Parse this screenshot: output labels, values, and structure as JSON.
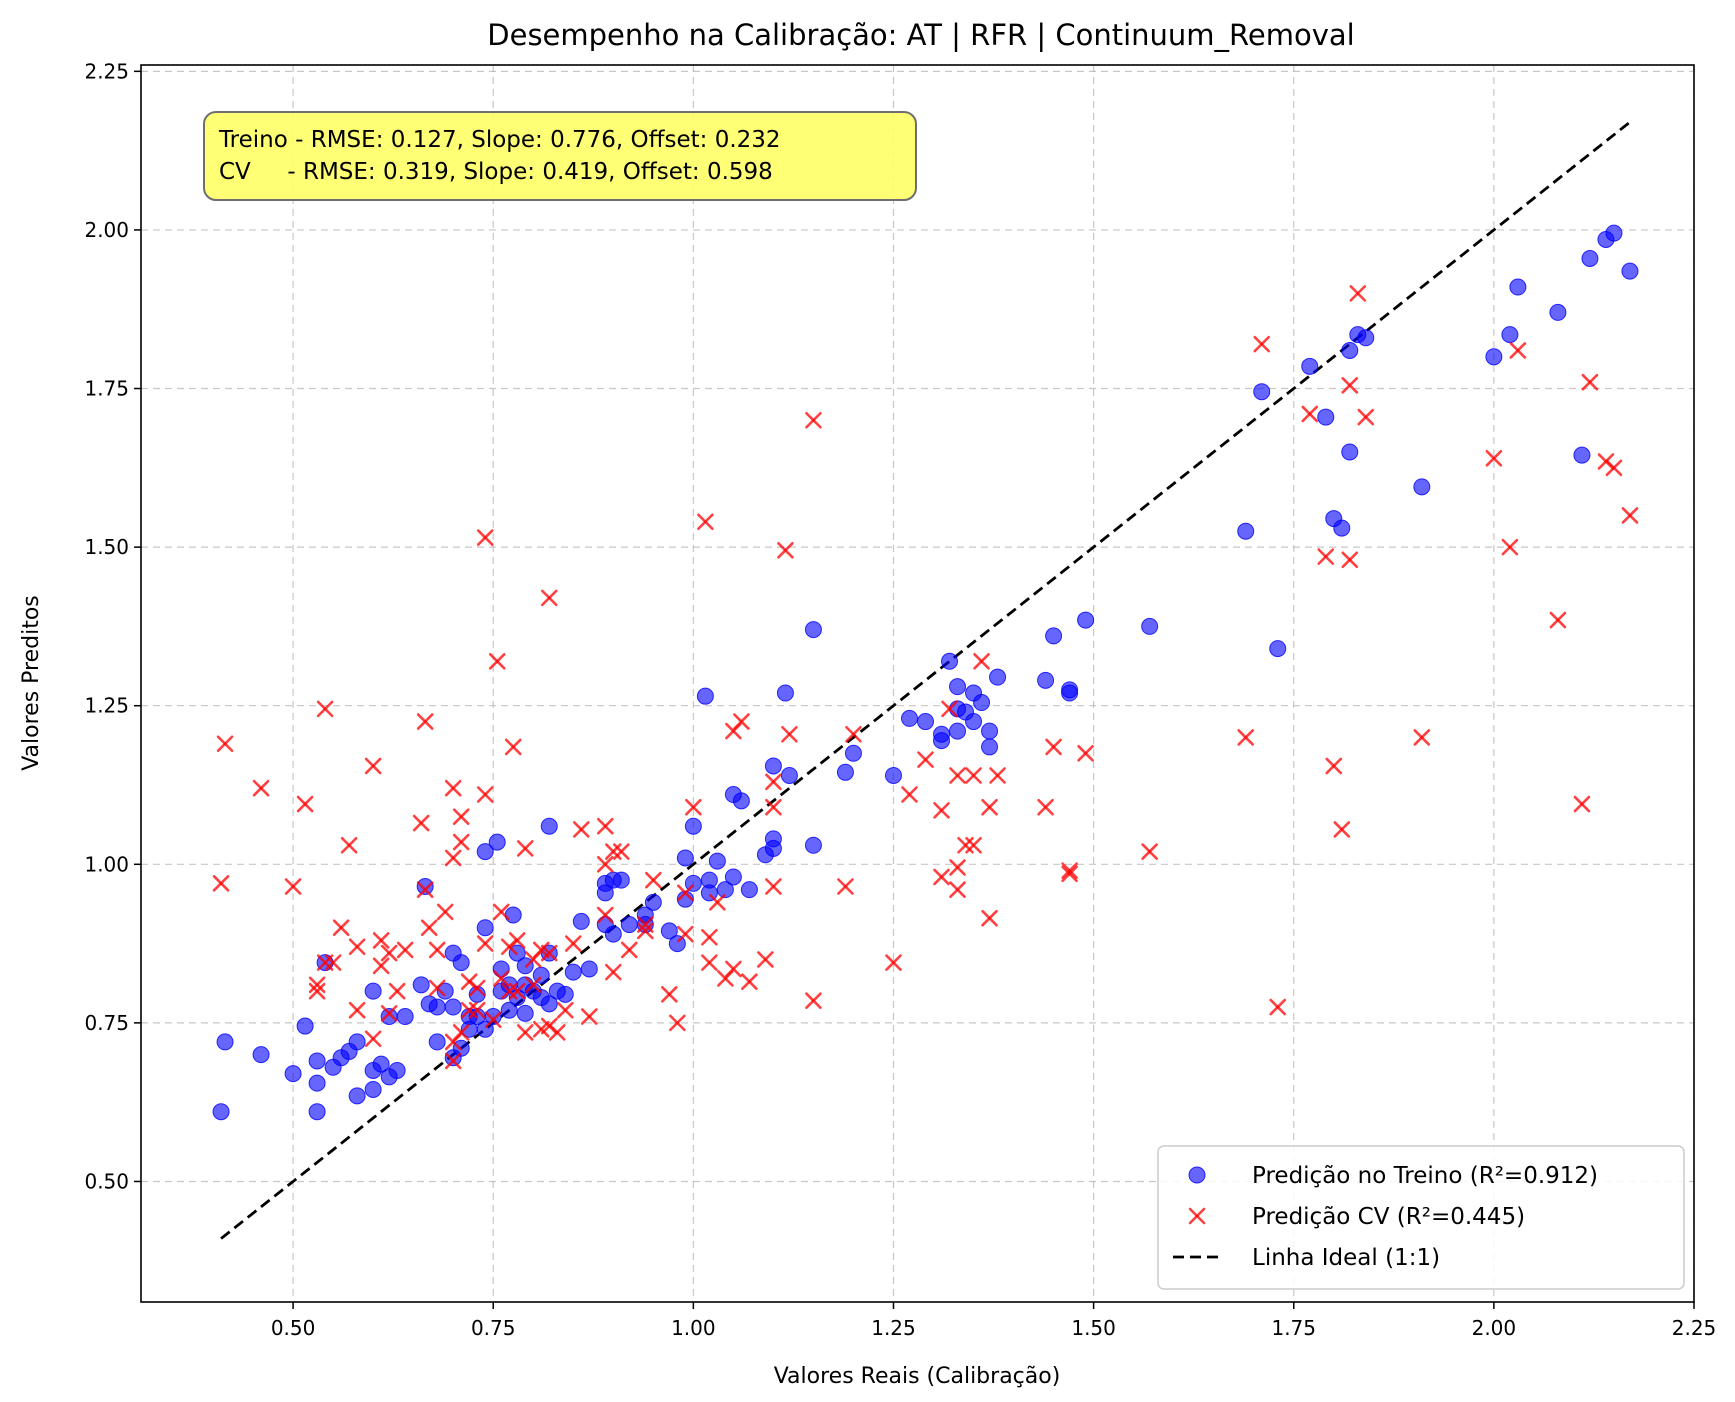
{
  "chart_data": {
    "type": "scatter",
    "title": "Desempenho na Calibração: AT | RFR | Continuum_Removal",
    "xlabel": "Valores Reais (Calibração)",
    "ylabel": "Valores Preditos",
    "xlim": [
      0.31,
      2.25
    ],
    "ylim": [
      0.31,
      2.26
    ],
    "xticks": [
      0.5,
      0.75,
      1.0,
      1.25,
      1.5,
      1.75,
      2.0,
      2.25
    ],
    "xtick_labels": [
      "0.50",
      "0.75",
      "1.00",
      "1.25",
      "1.50",
      "1.75",
      "2.00",
      "2.25"
    ],
    "yticks": [
      0.5,
      0.75,
      1.0,
      1.25,
      1.5,
      1.75,
      2.0,
      2.25
    ],
    "ytick_labels": [
      "0.50",
      "0.75",
      "1.00",
      "1.25",
      "1.50",
      "1.75",
      "2.00",
      "2.25"
    ],
    "grid": true,
    "legend_position": "bottom-right",
    "annotation": {
      "line1": "Treino - RMSE: 0.127, Slope: 0.776, Offset: 0.232",
      "line2": "CV     - RMSE: 0.319, Slope: 0.419, Offset: 0.598",
      "box_color": "#ffff66"
    },
    "series": [
      {
        "name": "Predição no Treino (R²=0.912)",
        "marker": "circle",
        "color": "#0000ff",
        "points": [
          [
            0.41,
            0.61
          ],
          [
            0.415,
            0.72
          ],
          [
            0.46,
            0.7
          ],
          [
            0.5,
            0.67
          ],
          [
            0.515,
            0.745
          ],
          [
            0.53,
            0.61
          ],
          [
            0.53,
            0.655
          ],
          [
            0.53,
            0.69
          ],
          [
            0.54,
            0.845
          ],
          [
            0.55,
            0.68
          ],
          [
            0.56,
            0.695
          ],
          [
            0.57,
            0.705
          ],
          [
            0.58,
            0.72
          ],
          [
            0.58,
            0.635
          ],
          [
            0.6,
            0.645
          ],
          [
            0.6,
            0.675
          ],
          [
            0.6,
            0.8
          ],
          [
            0.61,
            0.685
          ],
          [
            0.62,
            0.665
          ],
          [
            0.62,
            0.76
          ],
          [
            0.63,
            0.675
          ],
          [
            0.64,
            0.76
          ],
          [
            0.66,
            0.81
          ],
          [
            0.665,
            0.965
          ],
          [
            0.67,
            0.78
          ],
          [
            0.68,
            0.72
          ],
          [
            0.68,
            0.775
          ],
          [
            0.69,
            0.8
          ],
          [
            0.7,
            0.695
          ],
          [
            0.7,
            0.86
          ],
          [
            0.7,
            0.775
          ],
          [
            0.71,
            0.845
          ],
          [
            0.71,
            0.71
          ],
          [
            0.72,
            0.74
          ],
          [
            0.72,
            0.76
          ],
          [
            0.73,
            0.76
          ],
          [
            0.73,
            0.795
          ],
          [
            0.74,
            0.9
          ],
          [
            0.74,
            1.02
          ],
          [
            0.74,
            0.74
          ],
          [
            0.75,
            0.76
          ],
          [
            0.755,
            1.035
          ],
          [
            0.76,
            0.8
          ],
          [
            0.76,
            0.835
          ],
          [
            0.77,
            0.81
          ],
          [
            0.77,
            0.77
          ],
          [
            0.775,
            0.92
          ],
          [
            0.78,
            0.79
          ],
          [
            0.78,
            0.86
          ],
          [
            0.79,
            0.765
          ],
          [
            0.79,
            0.81
          ],
          [
            0.79,
            0.84
          ],
          [
            0.8,
            0.8
          ],
          [
            0.81,
            0.825
          ],
          [
            0.81,
            0.79
          ],
          [
            0.82,
            0.78
          ],
          [
            0.82,
            0.86
          ],
          [
            0.82,
            1.06
          ],
          [
            0.83,
            0.8
          ],
          [
            0.84,
            0.795
          ],
          [
            0.85,
            0.83
          ],
          [
            0.86,
            0.91
          ],
          [
            0.87,
            0.835
          ],
          [
            0.89,
            0.905
          ],
          [
            0.89,
            0.955
          ],
          [
            0.89,
            0.97
          ],
          [
            0.9,
            0.975
          ],
          [
            0.9,
            0.89
          ],
          [
            0.91,
            0.975
          ],
          [
            0.92,
            0.905
          ],
          [
            0.94,
            0.905
          ],
          [
            0.94,
            0.92
          ],
          [
            0.95,
            0.94
          ],
          [
            0.97,
            0.895
          ],
          [
            0.98,
            0.875
          ],
          [
            0.99,
            0.945
          ],
          [
            0.99,
            1.01
          ],
          [
            1.0,
            1.06
          ],
          [
            1.0,
            0.97
          ],
          [
            1.015,
            1.265
          ],
          [
            1.02,
            0.955
          ],
          [
            1.02,
            0.975
          ],
          [
            1.03,
            1.005
          ],
          [
            1.04,
            0.96
          ],
          [
            1.05,
            0.98
          ],
          [
            1.05,
            1.11
          ],
          [
            1.06,
            1.1
          ],
          [
            1.07,
            0.96
          ],
          [
            1.09,
            1.015
          ],
          [
            1.1,
            1.04
          ],
          [
            1.1,
            1.025
          ],
          [
            1.1,
            1.155
          ],
          [
            1.115,
            1.27
          ],
          [
            1.12,
            1.14
          ],
          [
            1.15,
            1.37
          ],
          [
            1.15,
            1.03
          ],
          [
            1.19,
            1.145
          ],
          [
            1.2,
            1.175
          ],
          [
            1.25,
            1.14
          ],
          [
            1.27,
            1.23
          ],
          [
            1.29,
            1.225
          ],
          [
            1.31,
            1.195
          ],
          [
            1.31,
            1.205
          ],
          [
            1.32,
            1.32
          ],
          [
            1.33,
            1.21
          ],
          [
            1.33,
            1.245
          ],
          [
            1.33,
            1.28
          ],
          [
            1.34,
            1.24
          ],
          [
            1.35,
            1.225
          ],
          [
            1.35,
            1.27
          ],
          [
            1.36,
            1.255
          ],
          [
            1.37,
            1.185
          ],
          [
            1.37,
            1.21
          ],
          [
            1.38,
            1.295
          ],
          [
            1.44,
            1.29
          ],
          [
            1.45,
            1.36
          ],
          [
            1.47,
            1.27
          ],
          [
            1.47,
            1.275
          ],
          [
            1.49,
            1.385
          ],
          [
            1.57,
            1.375
          ],
          [
            1.69,
            1.525
          ],
          [
            1.71,
            1.745
          ],
          [
            1.73,
            1.34
          ],
          [
            1.77,
            1.785
          ],
          [
            1.79,
            1.705
          ],
          [
            1.8,
            1.545
          ],
          [
            1.81,
            1.53
          ],
          [
            1.82,
            1.65
          ],
          [
            1.82,
            1.81
          ],
          [
            1.83,
            1.835
          ],
          [
            1.84,
            1.83
          ],
          [
            1.91,
            1.595
          ],
          [
            2.0,
            1.8
          ],
          [
            2.02,
            1.835
          ],
          [
            2.03,
            1.91
          ],
          [
            2.08,
            1.87
          ],
          [
            2.11,
            1.645
          ],
          [
            2.12,
            1.955
          ],
          [
            2.14,
            1.985
          ],
          [
            2.15,
            1.995
          ],
          [
            2.17,
            1.935
          ]
        ]
      },
      {
        "name": "Predição CV (R²=0.445)",
        "marker": "x",
        "color": "#ff0000",
        "points": [
          [
            0.41,
            0.97
          ],
          [
            0.415,
            1.19
          ],
          [
            0.46,
            1.12
          ],
          [
            0.5,
            0.965
          ],
          [
            0.515,
            1.095
          ],
          [
            0.53,
            0.8
          ],
          [
            0.53,
            0.81
          ],
          [
            0.54,
            0.845
          ],
          [
            0.54,
            1.245
          ],
          [
            0.55,
            0.845
          ],
          [
            0.56,
            0.9
          ],
          [
            0.57,
            1.03
          ],
          [
            0.58,
            0.77
          ],
          [
            0.58,
            0.87
          ],
          [
            0.6,
            0.725
          ],
          [
            0.6,
            1.155
          ],
          [
            0.61,
            0.88
          ],
          [
            0.61,
            0.84
          ],
          [
            0.62,
            0.86
          ],
          [
            0.62,
            0.765
          ],
          [
            0.63,
            0.8
          ],
          [
            0.64,
            0.865
          ],
          [
            0.66,
            1.065
          ],
          [
            0.665,
            1.225
          ],
          [
            0.665,
            0.96
          ],
          [
            0.67,
            0.9
          ],
          [
            0.68,
            0.865
          ],
          [
            0.68,
            0.805
          ],
          [
            0.69,
            0.925
          ],
          [
            0.7,
            1.01
          ],
          [
            0.7,
            1.12
          ],
          [
            0.7,
            0.72
          ],
          [
            0.7,
            0.69
          ],
          [
            0.71,
            1.035
          ],
          [
            0.71,
            1.075
          ],
          [
            0.71,
            0.735
          ],
          [
            0.72,
            0.815
          ],
          [
            0.72,
            0.77
          ],
          [
            0.73,
            0.77
          ],
          [
            0.73,
            0.805
          ],
          [
            0.74,
            1.11
          ],
          [
            0.74,
            1.515
          ],
          [
            0.74,
            0.875
          ],
          [
            0.75,
            0.755
          ],
          [
            0.755,
            1.32
          ],
          [
            0.76,
            0.925
          ],
          [
            0.76,
            0.82
          ],
          [
            0.77,
            0.8
          ],
          [
            0.77,
            0.87
          ],
          [
            0.775,
            1.185
          ],
          [
            0.78,
            0.8
          ],
          [
            0.78,
            0.88
          ],
          [
            0.79,
            1.025
          ],
          [
            0.79,
            0.735
          ],
          [
            0.8,
            0.85
          ],
          [
            0.8,
            0.81
          ],
          [
            0.81,
            0.865
          ],
          [
            0.81,
            0.74
          ],
          [
            0.82,
            0.745
          ],
          [
            0.82,
            1.42
          ],
          [
            0.82,
            0.86
          ],
          [
            0.83,
            0.735
          ],
          [
            0.84,
            0.77
          ],
          [
            0.85,
            0.875
          ],
          [
            0.86,
            1.055
          ],
          [
            0.87,
            0.76
          ],
          [
            0.89,
            1.06
          ],
          [
            0.89,
            1.0
          ],
          [
            0.89,
            0.92
          ],
          [
            0.9,
            0.83
          ],
          [
            0.9,
            1.02
          ],
          [
            0.91,
            1.02
          ],
          [
            0.92,
            0.865
          ],
          [
            0.94,
            0.905
          ],
          [
            0.94,
            0.895
          ],
          [
            0.95,
            0.975
          ],
          [
            0.97,
            0.795
          ],
          [
            0.98,
            0.75
          ],
          [
            0.99,
            0.89
          ],
          [
            0.99,
            0.955
          ],
          [
            1.0,
            1.09
          ],
          [
            1.015,
            1.54
          ],
          [
            1.02,
            0.845
          ],
          [
            1.02,
            0.885
          ],
          [
            1.03,
            0.94
          ],
          [
            1.04,
            0.82
          ],
          [
            1.05,
            0.835
          ],
          [
            1.05,
            1.21
          ],
          [
            1.06,
            1.225
          ],
          [
            1.07,
            0.815
          ],
          [
            1.09,
            0.85
          ],
          [
            1.1,
            0.965
          ],
          [
            1.1,
            1.09
          ],
          [
            1.1,
            1.13
          ],
          [
            1.115,
            1.495
          ],
          [
            1.12,
            1.205
          ],
          [
            1.15,
            1.7
          ],
          [
            1.15,
            0.785
          ],
          [
            1.19,
            0.965
          ],
          [
            1.2,
            1.205
          ],
          [
            1.25,
            0.845
          ],
          [
            1.27,
            1.11
          ],
          [
            1.29,
            1.165
          ],
          [
            1.31,
            1.085
          ],
          [
            1.31,
            0.98
          ],
          [
            1.32,
            1.245
          ],
          [
            1.33,
            0.995
          ],
          [
            1.33,
            0.96
          ],
          [
            1.33,
            1.14
          ],
          [
            1.34,
            1.03
          ],
          [
            1.35,
            1.03
          ],
          [
            1.35,
            1.14
          ],
          [
            1.36,
            1.32
          ],
          [
            1.37,
            1.09
          ],
          [
            1.37,
            0.915
          ],
          [
            1.38,
            1.14
          ],
          [
            1.44,
            1.09
          ],
          [
            1.45,
            1.185
          ],
          [
            1.47,
            0.985
          ],
          [
            1.47,
            0.99
          ],
          [
            1.49,
            1.175
          ],
          [
            1.57,
            1.02
          ],
          [
            1.69,
            1.2
          ],
          [
            1.71,
            1.82
          ],
          [
            1.73,
            0.775
          ],
          [
            1.77,
            1.71
          ],
          [
            1.79,
            1.485
          ],
          [
            1.8,
            1.155
          ],
          [
            1.81,
            1.055
          ],
          [
            1.82,
            1.48
          ],
          [
            1.82,
            1.755
          ],
          [
            1.83,
            1.9
          ],
          [
            1.84,
            1.705
          ],
          [
            1.91,
            1.2
          ],
          [
            2.0,
            1.64
          ],
          [
            2.02,
            1.5
          ],
          [
            2.03,
            1.81
          ],
          [
            2.08,
            1.385
          ],
          [
            2.11,
            1.095
          ],
          [
            2.12,
            1.76
          ],
          [
            2.14,
            1.635
          ],
          [
            2.15,
            1.625
          ],
          [
            2.17,
            1.55
          ]
        ]
      },
      {
        "name": "Linha Ideal (1:1)",
        "marker": "dashed-line",
        "color": "#000000",
        "points": [
          [
            0.41,
            0.41
          ],
          [
            2.17,
            2.17
          ]
        ]
      }
    ]
  }
}
